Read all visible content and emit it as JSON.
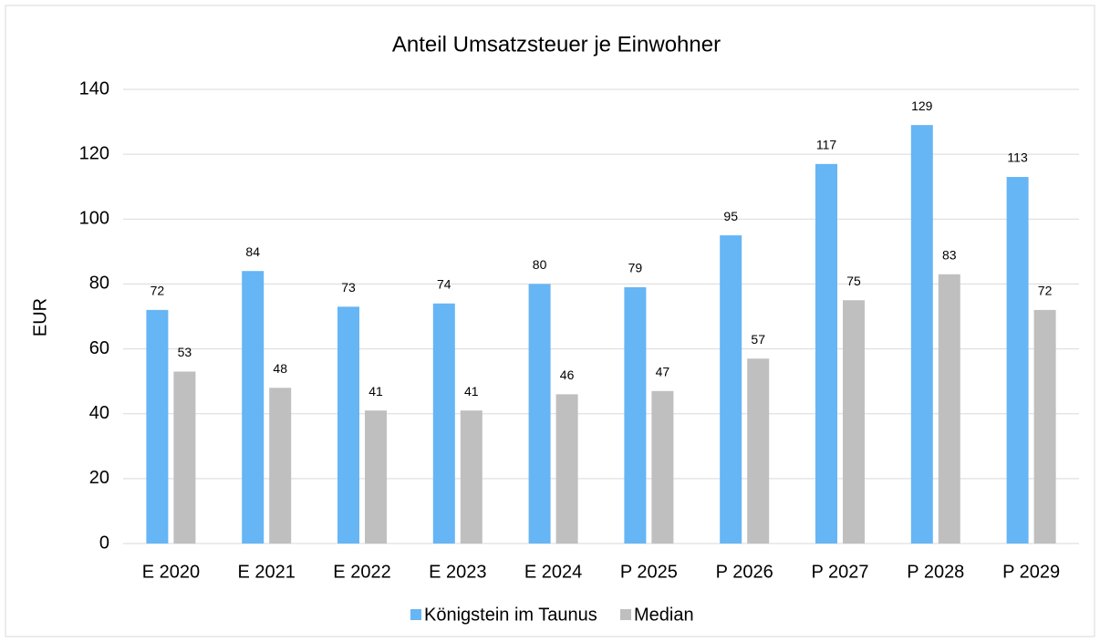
{
  "chart_data": {
    "type": "bar",
    "title": "Anteil Umsatzsteuer je Einwohner",
    "ylabel": "EUR",
    "categories": [
      "E 2020",
      "E 2021",
      "E 2022",
      "E 2023",
      "E 2024",
      "P 2025",
      "P 2026",
      "P 2027",
      "P 2028",
      "P 2029"
    ],
    "series": [
      {
        "name": "Königstein im Taunus",
        "color": "#66b5f5",
        "values": [
          72,
          84,
          73,
          74,
          80,
          79,
          95,
          117,
          129,
          113
        ]
      },
      {
        "name": "Median",
        "color": "#bfbfbf",
        "values": [
          53,
          48,
          41,
          41,
          46,
          47,
          57,
          75,
          83,
          72
        ]
      }
    ],
    "ylim": [
      0,
      140
    ],
    "yticks": [
      0,
      20,
      40,
      60,
      80,
      100,
      120,
      140
    ],
    "grid": true,
    "legend": "bottom"
  }
}
